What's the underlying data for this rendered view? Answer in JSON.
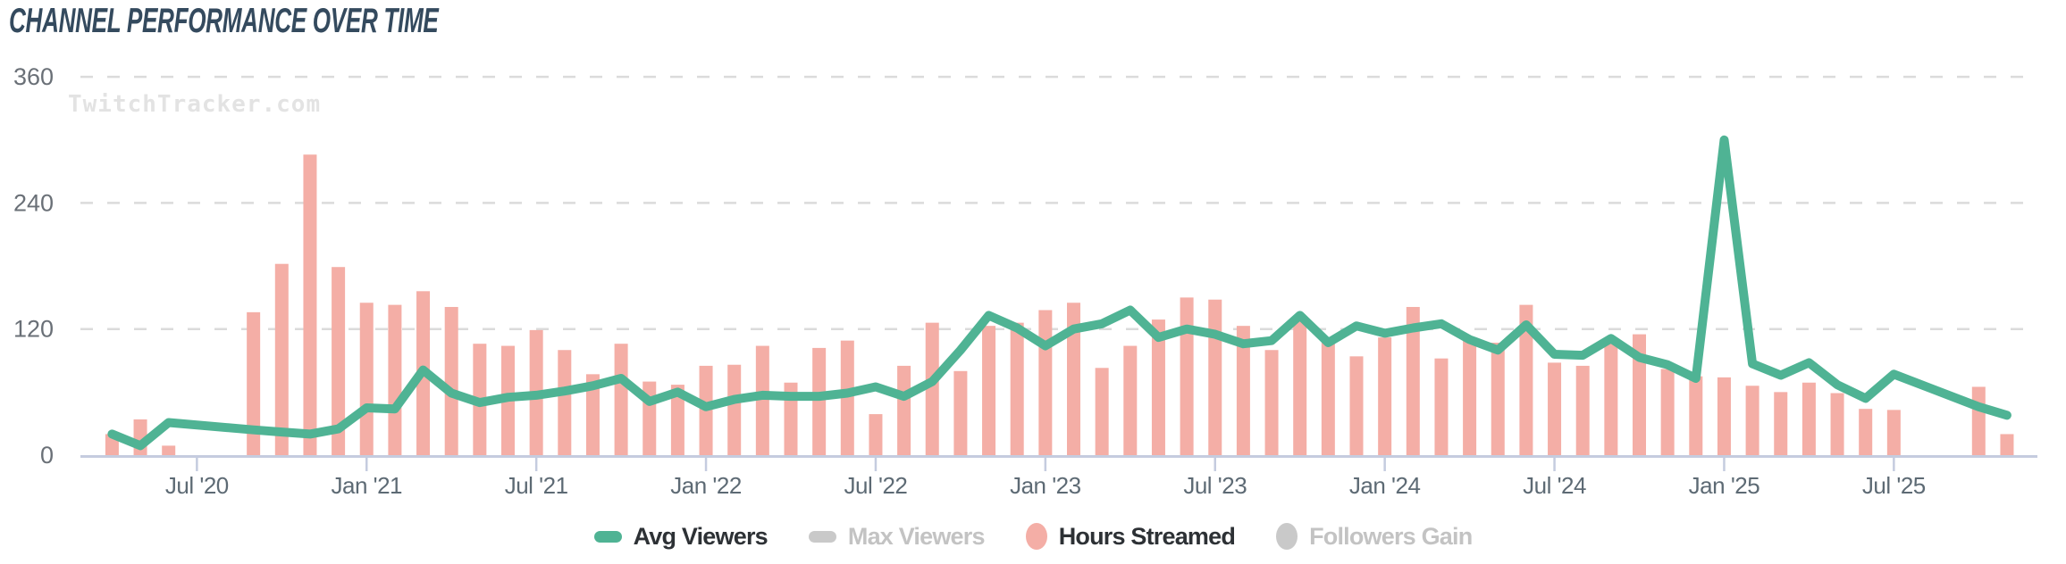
{
  "title": "CHANNEL PERFORMANCE OVER TIME",
  "watermark": "TwitchTracker.com",
  "colors": {
    "avg_viewers_line": "#4FB394",
    "hours_streamed_bar": "#F4AEA6",
    "disabled_swatch": "#C9C9C9",
    "title_text": "#344A5E",
    "axis_line": "#C5CCDF",
    "grid_line": "#DBDBDB",
    "x_tick_label": "#5D6A74",
    "y_tick_label": "#6A7077",
    "watermark_text": "#E3E3E3",
    "legend_active_text": "#2D3135",
    "legend_inactive_text": "#C3C3C3"
  },
  "y_axis": {
    "ticks": [
      0,
      120,
      240,
      360
    ],
    "max": 360
  },
  "x_axis": {
    "tick_labels": [
      "Jul '20",
      "Jan '21",
      "Jul '21",
      "Jan '22",
      "Jul '22",
      "Jan '23",
      "Jul '23",
      "Jan '24",
      "Jul '24",
      "Jan '25",
      "Jul '25"
    ],
    "tick_month_indices": [
      3,
      9,
      15,
      21,
      27,
      33,
      39,
      45,
      51,
      57,
      63
    ]
  },
  "legend": [
    {
      "label": "Avg Viewers",
      "swatch": "dash",
      "color": "#4FB394",
      "active": true
    },
    {
      "label": "Max Viewers",
      "swatch": "dash",
      "color": "#C9C9C9",
      "active": false
    },
    {
      "label": "Hours Streamed",
      "swatch": "ellipse",
      "color": "#F4AEA6",
      "active": true
    },
    {
      "label": "Followers Gain",
      "swatch": "ellipse",
      "color": "#C9C9C9",
      "active": false
    }
  ],
  "chart_data": {
    "type": "bar+line",
    "title": "CHANNEL PERFORMANCE OVER TIME",
    "xlabel": "",
    "ylabel": "",
    "ylim": [
      0,
      360
    ],
    "grid": "dashed horizontal gridlines at 120, 240, 360",
    "legend_position": "bottom center",
    "x": [
      "Apr '20",
      "May '20",
      "Jun '20",
      "Jul '20",
      "Aug '20",
      "Sep '20",
      "Oct '20",
      "Nov '20",
      "Dec '20",
      "Jan '21",
      "Feb '21",
      "Mar '21",
      "Apr '21",
      "May '21",
      "Jun '21",
      "Jul '21",
      "Aug '21",
      "Sep '21",
      "Oct '21",
      "Nov '21",
      "Dec '21",
      "Jan '22",
      "Feb '22",
      "Mar '22",
      "Apr '22",
      "May '22",
      "Jun '22",
      "Jul '22",
      "Aug '22",
      "Sep '22",
      "Oct '22",
      "Nov '22",
      "Dec '22",
      "Jan '23",
      "Feb '23",
      "Mar '23",
      "Apr '23",
      "May '23",
      "Jun '23",
      "Jul '23",
      "Aug '23",
      "Sep '23",
      "Oct '23",
      "Nov '23",
      "Dec '23",
      "Jan '24",
      "Feb '24",
      "Mar '24",
      "Apr '24",
      "May '24",
      "Jun '24",
      "Jul '24",
      "Aug '24",
      "Sep '24",
      "Oct '24",
      "Nov '24",
      "Dec '24",
      "Jan '25",
      "Feb '25",
      "Mar '25",
      "Apr '25",
      "May '25",
      "Jun '25",
      "Jul '25",
      "Aug '25",
      "Sep '25",
      "Oct '25",
      "Nov '25"
    ],
    "series": [
      {
        "name": "Avg Viewers",
        "type": "line",
        "visible": true,
        "values": [
          20,
          9,
          31,
          null,
          null,
          24,
          22,
          20,
          25,
          45,
          44,
          81,
          59,
          50,
          55,
          57,
          61,
          66,
          73,
          51,
          60,
          46,
          53,
          57,
          56,
          56,
          59,
          65,
          56,
          70,
          100,
          133,
          121,
          104,
          120,
          125,
          138,
          112,
          120,
          115,
          106,
          109,
          133,
          107,
          123,
          116,
          121,
          125,
          110,
          100,
          124,
          96,
          95,
          111,
          93,
          86,
          73,
          300,
          87,
          76,
          88,
          67,
          54,
          77,
          null,
          null,
          46,
          38
        ]
      },
      {
        "name": "Max Viewers",
        "type": "line",
        "visible": false,
        "values": null
      },
      {
        "name": "Hours Streamed",
        "type": "bar",
        "visible": true,
        "values": [
          20,
          34,
          9,
          null,
          null,
          136,
          182,
          286,
          179,
          145,
          143,
          156,
          141,
          106,
          104,
          119,
          100,
          77,
          106,
          70,
          67,
          85,
          86,
          104,
          69,
          102,
          109,
          39,
          85,
          126,
          80,
          123,
          126,
          138,
          145,
          83,
          104,
          129,
          150,
          148,
          123,
          100,
          129,
          109,
          94,
          112,
          141,
          92,
          111,
          107,
          143,
          88,
          85,
          109,
          115,
          82,
          75,
          74,
          66,
          60,
          69,
          59,
          44,
          43,
          null,
          null,
          65,
          20
        ]
      },
      {
        "name": "Followers Gain",
        "type": "bar",
        "visible": false,
        "values": null
      }
    ]
  }
}
